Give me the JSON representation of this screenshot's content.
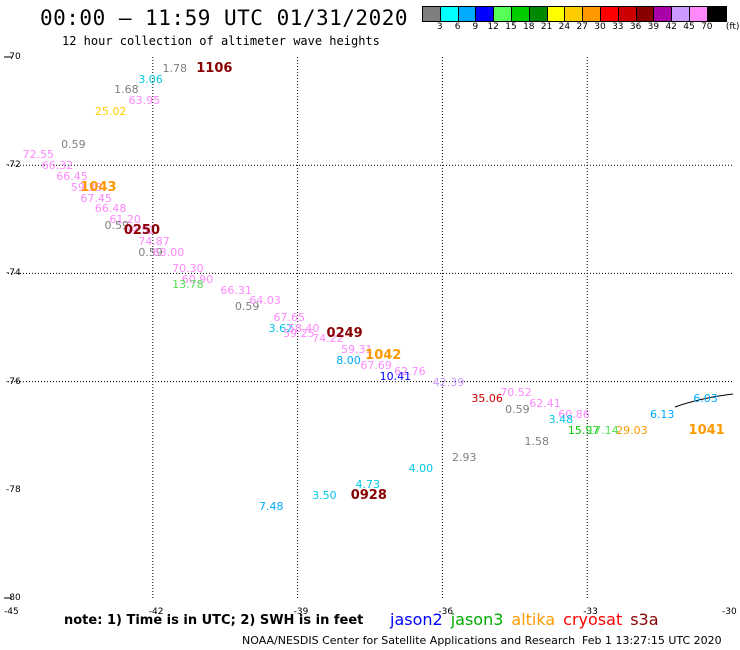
{
  "title": "00:00 – 11:59 UTC 01/31/2020",
  "subtitle": "12 hour collection of altimeter wave heights",
  "scale": {
    "unit": "(ft)",
    "colors": [
      "#7f7f7f",
      "#00ffff",
      "#00aaff",
      "#0000ff",
      "#55ff55",
      "#00cc00",
      "#008800",
      "#ffff00",
      "#ffcc00",
      "#ff9900",
      "#ff0000",
      "#cc0000",
      "#880000",
      "#aa00aa",
      "#cc99ff",
      "#ff88ff",
      "#000000"
    ],
    "labels": [
      "3",
      "6",
      "9",
      "12",
      "15",
      "18",
      "21",
      "24",
      "27",
      "30",
      "33",
      "36",
      "39",
      "42",
      "45",
      "70"
    ]
  },
  "grid": {
    "lat_labels": [
      "-70",
      "-72",
      "-74",
      "-76",
      "-78",
      "-80"
    ],
    "lon_labels": [
      "-45",
      "-42",
      "-39",
      "-36",
      "-33",
      "-30"
    ]
  },
  "chart_data": {
    "type": "scatter",
    "lon_range": [
      -45,
      -30
    ],
    "lat_range": [
      -80,
      -70
    ],
    "grid": true,
    "observations": [
      {
        "text": "1.78",
        "color": "#7f7f7f",
        "lon": -41.8,
        "lat": -70.2
      },
      {
        "text": "3.06",
        "color": "#00c8e6",
        "lon": -42.3,
        "lat": -70.4
      },
      {
        "text": "1.68",
        "color": "#7f7f7f",
        "lon": -42.8,
        "lat": -70.6
      },
      {
        "text": "63.95",
        "color": "#ff88ff",
        "lon": -42.5,
        "lat": -70.8
      },
      {
        "text": "25.02",
        "color": "#ffcc00",
        "lon": -43.2,
        "lat": -71.0
      },
      {
        "text": "0.59",
        "color": "#7f7f7f",
        "lon": -43.9,
        "lat": -71.6
      },
      {
        "text": "72.55",
        "color": "#ff88ff",
        "lon": -44.7,
        "lat": -71.8
      },
      {
        "text": "66.32",
        "color": "#ff88ff",
        "lon": -44.3,
        "lat": -72.0
      },
      {
        "text": "66.45",
        "color": "#ff88ff",
        "lon": -44.0,
        "lat": -72.2
      },
      {
        "text": "59.33",
        "color": "#ff88ff",
        "lon": -43.7,
        "lat": -72.4
      },
      {
        "text": "67.45",
        "color": "#ff88ff",
        "lon": -43.5,
        "lat": -72.6
      },
      {
        "text": "66.48",
        "color": "#ff88ff",
        "lon": -43.2,
        "lat": -72.8
      },
      {
        "text": "61.20",
        "color": "#ff88ff",
        "lon": -42.9,
        "lat": -73.0
      },
      {
        "text": "0.59",
        "color": "#7f7f7f",
        "lon": -43.0,
        "lat": -73.1
      },
      {
        "text": "69.52",
        "color": "#ff88ff",
        "lon": -42.6,
        "lat": -73.2
      },
      {
        "text": "74.87",
        "color": "#ff88ff",
        "lon": -42.3,
        "lat": -73.4
      },
      {
        "text": "0.59",
        "color": "#7f7f7f",
        "lon": -42.3,
        "lat": -73.6
      },
      {
        "text": "63.00",
        "color": "#ff88ff",
        "lon": -42.0,
        "lat": -73.6
      },
      {
        "text": "70.30",
        "color": "#ff88ff",
        "lon": -41.6,
        "lat": -73.9
      },
      {
        "text": "60.90",
        "color": "#ff88ff",
        "lon": -41.4,
        "lat": -74.1
      },
      {
        "text": "13.78",
        "color": "#55dd55",
        "lon": -41.6,
        "lat": -74.2
      },
      {
        "text": "66.31",
        "color": "#ff88ff",
        "lon": -40.6,
        "lat": -74.3
      },
      {
        "text": "0.59",
        "color": "#7f7f7f",
        "lon": -40.3,
        "lat": -74.6
      },
      {
        "text": "64.03",
        "color": "#ff88ff",
        "lon": -40.0,
        "lat": -74.5
      },
      {
        "text": "67.65",
        "color": "#ff88ff",
        "lon": -39.5,
        "lat": -74.8
      },
      {
        "text": "3.62",
        "color": "#00c8e6",
        "lon": -39.6,
        "lat": -75.0
      },
      {
        "text": "58.40",
        "color": "#ff88ff",
        "lon": -39.2,
        "lat": -75.0
      },
      {
        "text": "59.25",
        "color": "#ff88ff",
        "lon": -39.3,
        "lat": -75.1
      },
      {
        "text": "74.22",
        "color": "#ff88ff",
        "lon": -38.7,
        "lat": -75.2
      },
      {
        "text": "59.31",
        "color": "#ff88ff",
        "lon": -38.1,
        "lat": -75.4
      },
      {
        "text": "8.00",
        "color": "#00aaff",
        "lon": -38.2,
        "lat": -75.6
      },
      {
        "text": "67.69",
        "color": "#ff88ff",
        "lon": -37.7,
        "lat": -75.7
      },
      {
        "text": "10.41",
        "color": "#0000ff",
        "lon": -37.3,
        "lat": -75.9
      },
      {
        "text": "62.76",
        "color": "#ff88ff",
        "lon": -37.0,
        "lat": -75.8
      },
      {
        "text": "42.39",
        "color": "#cc99ff",
        "lon": -36.2,
        "lat": -76.0
      },
      {
        "text": "35.06",
        "color": "#cc0000",
        "lon": -35.4,
        "lat": -76.3
      },
      {
        "text": "70.52",
        "color": "#ff88ff",
        "lon": -34.8,
        "lat": -76.2
      },
      {
        "text": "62.41",
        "color": "#ff88ff",
        "lon": -34.2,
        "lat": -76.4
      },
      {
        "text": "0.59",
        "color": "#7f7f7f",
        "lon": -34.7,
        "lat": -76.5
      },
      {
        "text": "60.86",
        "color": "#ff88ff",
        "lon": -33.6,
        "lat": -76.6
      },
      {
        "text": "3.48",
        "color": "#00c8e6",
        "lon": -33.8,
        "lat": -76.7
      },
      {
        "text": "1.58",
        "color": "#7f7f7f",
        "lon": -34.3,
        "lat": -77.1
      },
      {
        "text": "15.97",
        "color": "#00cc00",
        "lon": -33.4,
        "lat": -76.9
      },
      {
        "text": "17.14",
        "color": "#55dd55",
        "lon": -33.0,
        "lat": -76.9
      },
      {
        "text": "29.03",
        "color": "#ff9900",
        "lon": -32.4,
        "lat": -76.9
      },
      {
        "text": "6.13",
        "color": "#00aaff",
        "lon": -31.7,
        "lat": -76.6
      },
      {
        "text": "6.03",
        "color": "#00aaff",
        "lon": -30.8,
        "lat": -76.3
      },
      {
        "text": "2.93",
        "color": "#7f7f7f",
        "lon": -35.8,
        "lat": -77.4
      },
      {
        "text": "4.00",
        "color": "#00c8e6",
        "lon": -36.7,
        "lat": -77.6
      },
      {
        "text": "4.73",
        "color": "#00c8e6",
        "lon": -37.8,
        "lat": -77.9
      },
      {
        "text": "3.50",
        "color": "#00c8e6",
        "lon": -38.7,
        "lat": -78.1
      },
      {
        "text": "7.48",
        "color": "#00aaff",
        "lon": -39.8,
        "lat": -78.3
      }
    ],
    "pass_times": [
      {
        "text": "1106",
        "color": "#880000",
        "lon": -41.1,
        "lat": -70.2
      },
      {
        "text": "1043",
        "color": "#ff9900",
        "lon": -43.5,
        "lat": -72.4
      },
      {
        "text": "0250",
        "color": "#880000",
        "lon": -42.6,
        "lat": -73.2
      },
      {
        "text": "0249",
        "color": "#880000",
        "lon": -38.4,
        "lat": -75.1
      },
      {
        "text": "1042",
        "color": "#ff9900",
        "lon": -37.6,
        "lat": -75.5
      },
      {
        "text": "1041",
        "color": "#ff9900",
        "lon": -30.9,
        "lat": -76.9
      },
      {
        "text": "0928",
        "color": "#880000",
        "lon": -37.9,
        "lat": -78.1
      }
    ]
  },
  "note": "note: 1) Time is in UTC; 2) SWH is in feet",
  "legend": [
    {
      "name": "jason2",
      "color": "#0000ff"
    },
    {
      "name": "jason3",
      "color": "#00aa00"
    },
    {
      "name": "altika",
      "color": "#ff9900"
    },
    {
      "name": "cryosat",
      "color": "#ff0000"
    },
    {
      "name": "s3a",
      "color": "#880000"
    }
  ],
  "footer": "NOAA/NESDIS Center for Satellite Applications and Research",
  "footer_date": "Feb  1 13:27:15 UTC 2020"
}
